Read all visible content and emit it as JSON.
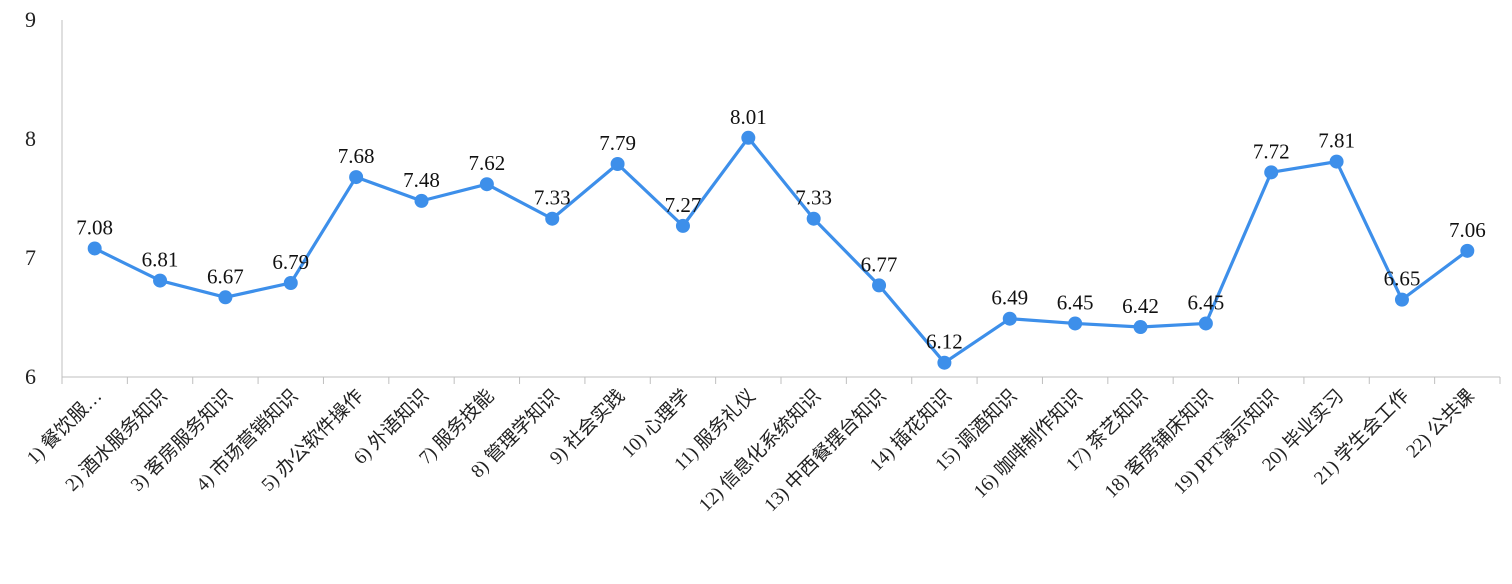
{
  "chart_data": {
    "type": "line",
    "title": "",
    "xlabel": "",
    "ylabel": "",
    "ylim": [
      6,
      9
    ],
    "yticks": [
      "6",
      "7",
      "8",
      "9"
    ],
    "grid": false,
    "legend": "none",
    "series_color": "#3D8FEA",
    "categories": [
      "1) 餐饮服…",
      "2) 酒水服务知识",
      "3) 客房服务知识",
      "4) 市场营销知识",
      "5) 办公软件操作",
      "6) 外语知识",
      "7) 服务技能",
      "8) 管理学知识",
      "9) 社会实践",
      "10) 心理学",
      "11) 服务礼仪",
      "12) 信息化系统知识",
      "13) 中西餐摆台知识",
      "14) 插花知识",
      "15) 调酒知识",
      "16) 咖啡制作知识",
      "17) 茶艺知识",
      "18) 客房铺床知识",
      "19) PPT演示知识",
      "20) 毕业实习",
      "21) 学生会工作",
      "22) 公共课"
    ],
    "values": [
      7.08,
      6.81,
      6.67,
      6.79,
      7.68,
      7.48,
      7.62,
      7.33,
      7.79,
      7.27,
      8.01,
      7.33,
      6.77,
      6.12,
      6.49,
      6.45,
      6.42,
      6.45,
      7.72,
      7.81,
      6.65,
      7.06
    ],
    "value_labels": [
      "7.08",
      "6.81",
      "6.67",
      "6.79",
      "7.68",
      "7.48",
      "7.62",
      "7.33",
      "7.79",
      "7.27",
      "8.01",
      "7.33",
      "6.77",
      "6.12",
      "6.49",
      "6.45",
      "6.42",
      "6.45",
      "7.72",
      "7.81",
      "6.65",
      "7.06"
    ]
  }
}
